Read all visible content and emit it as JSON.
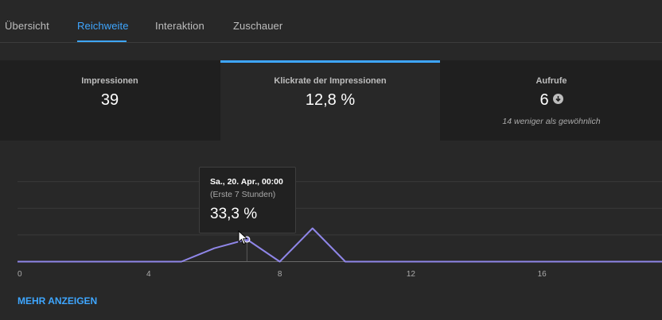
{
  "tabs": [
    {
      "label": "Übersicht",
      "active": false
    },
    {
      "label": "Reichweite",
      "active": true
    },
    {
      "label": "Interaktion",
      "active": false
    },
    {
      "label": "Zuschauer",
      "active": false
    }
  ],
  "cards": [
    {
      "label": "Impressionen",
      "value": "39"
    },
    {
      "label": "Klickrate der Impressionen",
      "value": "12,8 %",
      "selected": true
    },
    {
      "label": "Aufrufe",
      "value": "6",
      "note": "14 weniger als gewöhnlich",
      "icon": "arrow-down-circle-icon"
    }
  ],
  "tooltip": {
    "date": "Sa., 20. Apr., 00:00",
    "sub": "(Erste 7 Stunden)",
    "value": "33,3 %"
  },
  "more_label": "MEHR ANZEIGEN",
  "colors": {
    "accent": "#3ea6ff",
    "line": "#8f86e8"
  },
  "chart_data": {
    "type": "line",
    "x": [
      0,
      1,
      2,
      3,
      4,
      5,
      6,
      7,
      8,
      9,
      10,
      11,
      12,
      13,
      14,
      15,
      16,
      17,
      18,
      19
    ],
    "series": [
      {
        "values": [
          0,
          0,
          0,
          0,
          0,
          0,
          20,
          33.3,
          0,
          50,
          0,
          0,
          0,
          0,
          0,
          0,
          0,
          0,
          0,
          0
        ]
      }
    ],
    "x_ticks": [
      "0",
      "4",
      "8",
      "12",
      "16"
    ],
    "highlighted_x": 7,
    "ylim": [
      0,
      120
    ],
    "grid": true
  }
}
